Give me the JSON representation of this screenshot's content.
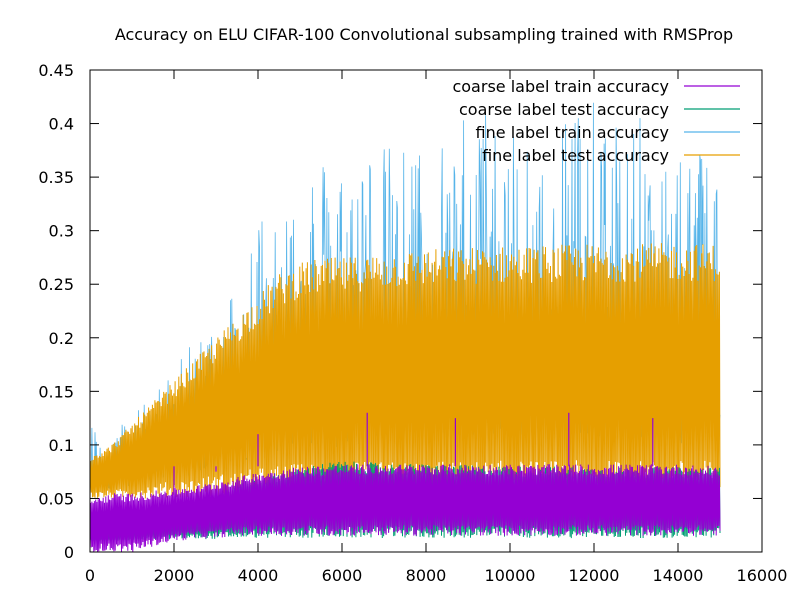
{
  "chart_data": {
    "type": "line",
    "title": "Accuracy on ELU CIFAR-100 Convolutional subsampling trained with RMSProp",
    "xlabel": "",
    "ylabel": "",
    "xlim": [
      0,
      16000
    ],
    "ylim": [
      0,
      0.45
    ],
    "x_ticks": [
      0,
      2000,
      4000,
      6000,
      8000,
      10000,
      12000,
      14000,
      16000
    ],
    "y_ticks": [
      0,
      0.05,
      0.1,
      0.15,
      0.2,
      0.25,
      0.3,
      0.35,
      0.4,
      0.45
    ],
    "x_tick_labels": [
      "0",
      "2000",
      "4000",
      "6000",
      "8000",
      "10000",
      "12000",
      "14000",
      "16000"
    ],
    "y_tick_labels": [
      "0",
      "0.05",
      "0.1",
      "0.15",
      "0.2",
      "0.25",
      "0.3",
      "0.35",
      "0.4",
      "0.45"
    ],
    "grid": false,
    "legend_position": "top-right",
    "series": [
      {
        "name": "coarse label train accuracy",
        "color": "#9400d3",
        "x": [
          0,
          500,
          1000,
          1500,
          2000,
          2500,
          3000,
          3500,
          4000,
          5000,
          6000,
          7000,
          8000,
          9000,
          10000,
          11000,
          12000,
          13000,
          14000,
          15000
        ],
        "upper": [
          0.05,
          0.055,
          0.055,
          0.057,
          0.06,
          0.062,
          0.066,
          0.07,
          0.075,
          0.08,
          0.082,
          0.082,
          0.082,
          0.082,
          0.082,
          0.082,
          0.082,
          0.082,
          0.082,
          0.08
        ],
        "lower": [
          0.0,
          0.0,
          0.0,
          0.005,
          0.01,
          0.012,
          0.013,
          0.015,
          0.015,
          0.015,
          0.015,
          0.015,
          0.015,
          0.015,
          0.015,
          0.015,
          0.015,
          0.015,
          0.015,
          0.015
        ],
        "spikes": [
          [
            2000,
            0.06
          ],
          [
            3000,
            0.075
          ],
          [
            4000,
            0.11
          ],
          [
            6600,
            0.13
          ],
          [
            8700,
            0.125
          ],
          [
            11400,
            0.13
          ],
          [
            13400,
            0.125
          ]
        ]
      },
      {
        "name": "coarse label test accuracy",
        "color": "#009e73",
        "x": [
          0,
          500,
          1000,
          1500,
          2000,
          2500,
          3000,
          3500,
          4000,
          4500,
          5000,
          5500,
          6000,
          7000,
          8000,
          9000,
          10000,
          11000,
          12000,
          13000,
          14000,
          15000
        ],
        "upper": [
          0.018,
          0.022,
          0.028,
          0.035,
          0.04,
          0.048,
          0.055,
          0.063,
          0.07,
          0.075,
          0.078,
          0.083,
          0.085,
          0.083,
          0.082,
          0.081,
          0.08,
          0.08,
          0.079,
          0.079,
          0.079,
          0.079
        ],
        "lower": [
          0.01,
          0.01,
          0.011,
          0.011,
          0.012,
          0.012,
          0.012,
          0.013,
          0.013,
          0.013,
          0.013,
          0.013,
          0.013,
          0.013,
          0.013,
          0.013,
          0.013,
          0.013,
          0.013,
          0.013,
          0.013,
          0.013
        ]
      },
      {
        "name": "fine label train accuracy",
        "color": "#56b4e9",
        "x": [
          0,
          500,
          1000,
          1500,
          2000,
          2500,
          3000,
          3500,
          4000,
          4500,
          5000,
          5500,
          6000,
          7000,
          8000,
          9000,
          10000,
          11000,
          12000,
          13000,
          14000,
          15000
        ],
        "upper": [
          0.12,
          0.11,
          0.13,
          0.15,
          0.17,
          0.2,
          0.22,
          0.26,
          0.32,
          0.34,
          0.36,
          0.37,
          0.37,
          0.38,
          0.38,
          0.42,
          0.41,
          0.43,
          0.42,
          0.41,
          0.38,
          0.39
        ],
        "lower": [
          0.05,
          0.05,
          0.05,
          0.05,
          0.05,
          0.05,
          0.05,
          0.05,
          0.05,
          0.05,
          0.05,
          0.05,
          0.05,
          0.05,
          0.05,
          0.05,
          0.05,
          0.05,
          0.05,
          0.05,
          0.05,
          0.05
        ]
      },
      {
        "name": "fine label test accuracy",
        "color": "#e69f00",
        "x": [
          0,
          500,
          1000,
          1500,
          2000,
          2500,
          3000,
          3500,
          4000,
          4500,
          5000,
          5500,
          6000,
          7000,
          8000,
          9000,
          10000,
          11000,
          12000,
          13000,
          14000,
          15000
        ],
        "upper": [
          0.09,
          0.1,
          0.12,
          0.14,
          0.16,
          0.18,
          0.2,
          0.22,
          0.24,
          0.26,
          0.27,
          0.275,
          0.275,
          0.28,
          0.283,
          0.285,
          0.286,
          0.287,
          0.288,
          0.288,
          0.289,
          0.288
        ],
        "lower": [
          0.05,
          0.05,
          0.05,
          0.05,
          0.05,
          0.05,
          0.05,
          0.05,
          0.05,
          0.05,
          0.05,
          0.05,
          0.05,
          0.05,
          0.05,
          0.05,
          0.05,
          0.05,
          0.05,
          0.05,
          0.05,
          0.05
        ]
      }
    ]
  }
}
